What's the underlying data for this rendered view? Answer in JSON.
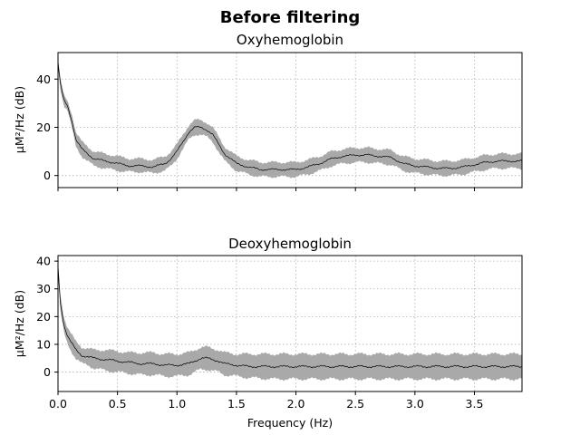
{
  "figure": {
    "suptitle": "Before filtering"
  },
  "chart_data": [
    {
      "type": "line",
      "title": "Oxyhemoglobin",
      "xlabel": "",
      "ylabel": "µM²/Hz (dB)",
      "xlim": [
        0,
        3.9
      ],
      "ylim": [
        -5,
        51
      ],
      "xticks": [
        0,
        0.5,
        1.0,
        1.5,
        2.0,
        2.5,
        3.0,
        3.5
      ],
      "xtick_labels": [],
      "yticks": [
        0,
        20,
        40
      ],
      "ytick_labels": [
        "0",
        "20",
        "40"
      ],
      "grid": true,
      "band_color": "#a9a9a9",
      "line_color": "#000000",
      "series": [
        {
          "x": [
            0.0,
            0.02,
            0.05,
            0.08,
            0.12,
            0.15,
            0.2,
            0.25,
            0.3,
            0.4,
            0.5,
            0.6,
            0.7,
            0.8,
            0.9,
            0.95,
            1.0,
            1.05,
            1.1,
            1.15,
            1.2,
            1.25,
            1.3,
            1.35,
            1.4,
            1.45,
            1.5,
            1.6,
            1.7,
            1.8,
            1.9,
            2.0,
            2.1,
            2.2,
            2.3,
            2.4,
            2.5,
            2.6,
            2.7,
            2.8,
            2.9,
            3.0,
            3.1,
            3.2,
            3.3,
            3.4,
            3.5,
            3.6,
            3.7,
            3.8,
            3.9
          ],
          "mean": [
            47,
            38,
            31,
            29,
            22,
            15,
            11,
            9,
            7,
            6,
            5,
            4,
            4,
            3.5,
            5,
            7,
            10,
            14,
            18,
            20,
            20,
            19,
            17,
            13,
            9,
            7,
            5,
            3.5,
            2.5,
            2.5,
            2.5,
            2.5,
            3.5,
            5,
            7,
            8,
            8.5,
            8.5,
            8,
            7.5,
            5,
            4,
            3.5,
            3,
            3,
            3.5,
            4.5,
            5.5,
            6,
            6,
            6
          ],
          "lower": [
            45,
            36,
            29,
            27,
            19,
            12,
            8,
            6,
            4,
            3,
            2,
            1.5,
            1.5,
            1,
            2,
            4,
            7,
            11,
            15,
            17,
            17,
            16,
            14,
            10,
            6,
            4,
            2,
            0.5,
            -0.5,
            -0.5,
            -0.5,
            -0.5,
            0.5,
            2,
            4,
            5,
            5.5,
            5.5,
            5,
            4.5,
            2,
            1,
            0.5,
            0,
            0,
            0.5,
            1.5,
            2.5,
            3,
            3,
            3
          ],
          "upper": [
            49,
            40,
            33,
            31,
            25,
            18,
            14,
            12,
            10,
            9,
            8,
            7,
            7,
            6.5,
            8,
            10,
            13,
            17,
            21,
            23,
            23,
            22,
            20,
            16,
            12,
            10,
            8,
            6.5,
            5.5,
            5.5,
            5.5,
            5.5,
            6.5,
            8,
            10,
            11,
            11.5,
            11.5,
            11,
            10.5,
            8,
            7,
            6.5,
            6,
            6,
            6.5,
            7.5,
            8.5,
            9,
            9,
            9
          ]
        }
      ]
    },
    {
      "type": "line",
      "title": "Deoxyhemoglobin",
      "xlabel": "Frequency (Hz)",
      "ylabel": "µM²/Hz (dB)",
      "xlim": [
        0,
        3.9
      ],
      "ylim": [
        -7,
        42
      ],
      "xticks": [
        0,
        0.5,
        1.0,
        1.5,
        2.0,
        2.5,
        3.0,
        3.5
      ],
      "xtick_labels": [
        "0.0",
        "0.5",
        "1.0",
        "1.5",
        "2.0",
        "2.5",
        "3.0",
        "3.5"
      ],
      "yticks": [
        0,
        10,
        20,
        30,
        40
      ],
      "ytick_labels": [
        "0",
        "10",
        "20",
        "30",
        "40"
      ],
      "grid": true,
      "band_color": "#a9a9a9",
      "line_color": "#000000",
      "series": [
        {
          "x": [
            0.0,
            0.02,
            0.05,
            0.08,
            0.12,
            0.15,
            0.2,
            0.25,
            0.3,
            0.4,
            0.5,
            0.6,
            0.7,
            0.8,
            0.9,
            1.0,
            1.1,
            1.15,
            1.2,
            1.25,
            1.3,
            1.35,
            1.4,
            1.5,
            1.6,
            1.8,
            2.0,
            2.2,
            2.4,
            2.6,
            2.8,
            3.0,
            3.2,
            3.4,
            3.6,
            3.8,
            3.9
          ],
          "mean": [
            38,
            25,
            17,
            13,
            10,
            8,
            6,
            5.5,
            5,
            4.5,
            4,
            3.5,
            3,
            3,
            2.5,
            2.5,
            3,
            4,
            5,
            5,
            4.5,
            4,
            3,
            2.5,
            2,
            2,
            2,
            2,
            2,
            2,
            2,
            2,
            2,
            2,
            2,
            2,
            2
          ],
          "lower": [
            36,
            22,
            14,
            10,
            7,
            5,
            3,
            2.5,
            1.5,
            0.5,
            0,
            -0.5,
            -1,
            -1,
            -1.5,
            -1.5,
            -1,
            0,
            1,
            1,
            0.5,
            0,
            -1,
            -1.5,
            -2,
            -2.5,
            -2.5,
            -2.5,
            -2.5,
            -2.5,
            -2.5,
            -2.5,
            -2.5,
            -2.5,
            -2.5,
            -2.5,
            -2.5
          ],
          "upper": [
            40,
            28,
            20,
            16,
            13,
            11,
            9,
            8.5,
            8,
            8,
            7.5,
            7,
            7,
            7,
            6.5,
            6.5,
            7,
            8,
            9,
            9,
            8.5,
            8,
            7,
            6.5,
            6.5,
            6.5,
            6.5,
            6.5,
            6.5,
            6.5,
            6.5,
            6.5,
            6.5,
            6.5,
            6.5,
            6.5,
            6.5
          ]
        }
      ]
    }
  ]
}
